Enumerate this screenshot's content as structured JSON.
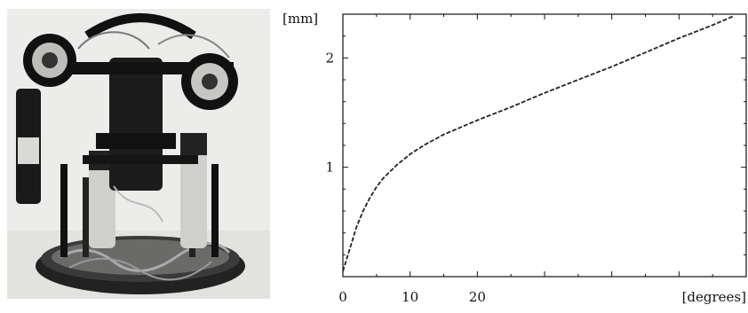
{
  "figure": {
    "photo_alt": "robot head with stereo cameras on motorized base"
  },
  "chart_data": {
    "type": "line",
    "xlabel": "[degrees]",
    "ylabel": "[mm]",
    "xlim": [
      0,
      60
    ],
    "ylim": [
      0,
      2.4
    ],
    "x_ticks": [
      0,
      10,
      20
    ],
    "y_ticks": [
      1,
      2
    ],
    "grid": false,
    "series": [
      {
        "x": [
          0,
          1,
          2,
          3,
          4,
          5,
          6,
          8,
          10,
          12,
          15,
          20,
          25,
          30,
          35,
          40,
          45,
          50,
          55,
          58
        ],
        "values": [
          0.05,
          0.25,
          0.45,
          0.6,
          0.72,
          0.82,
          0.9,
          1.02,
          1.12,
          1.2,
          1.3,
          1.43,
          1.55,
          1.68,
          1.8,
          1.92,
          2.05,
          2.18,
          2.3,
          2.38
        ]
      }
    ]
  }
}
